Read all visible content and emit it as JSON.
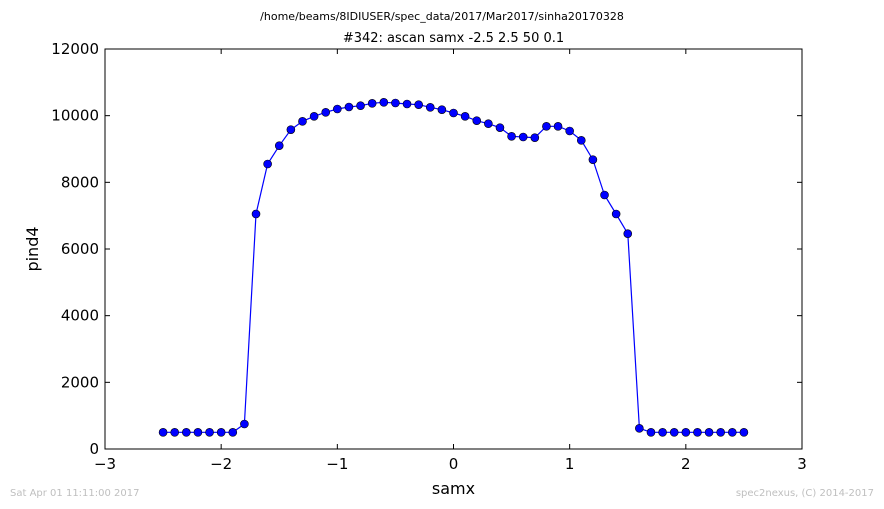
{
  "suptitle": "/home/beams/8IDIUSER/spec_data/2017/Mar2017/sinha20170328",
  "footer": {
    "timestamp": "Sat Apr 01 11:11:00 2017",
    "credit": "spec2nexus, (C) 2014-2017"
  },
  "chart_data": {
    "type": "line",
    "title": "#342: ascan  samx -2.5 2.5  50 0.1",
    "xlabel": "samx",
    "ylabel": "pind4",
    "xlim": [
      -3,
      3
    ],
    "ylim": [
      0,
      12000
    ],
    "xticks": [
      -3,
      -2,
      -1,
      0,
      1,
      2,
      3
    ],
    "yticks": [
      0,
      2000,
      4000,
      6000,
      8000,
      10000,
      12000
    ],
    "xtick_labels": [
      "−3",
      "−2",
      "−1",
      "0",
      "1",
      "2",
      "3"
    ],
    "ytick_labels": [
      "0",
      "2000",
      "4000",
      "6000",
      "8000",
      "10000",
      "12000"
    ],
    "grid": false,
    "legend": "none",
    "series": [
      {
        "color": "#0000ff",
        "marker": "circle",
        "x": [
          -2.5,
          -2.4,
          -2.3,
          -2.2,
          -2.1,
          -2.0,
          -1.9,
          -1.8,
          -1.7,
          -1.6,
          -1.5,
          -1.4,
          -1.3,
          -1.2,
          -1.1,
          -1.0,
          -0.9,
          -0.8,
          -0.7,
          -0.6,
          -0.5,
          -0.4,
          -0.3,
          -0.2,
          -0.1,
          0.0,
          0.1,
          0.2,
          0.3,
          0.4,
          0.5,
          0.6,
          0.7,
          0.8,
          0.9,
          1.0,
          1.1,
          1.2,
          1.3,
          1.4,
          1.5,
          1.6,
          1.7,
          1.8,
          1.9,
          2.0,
          2.1,
          2.2,
          2.3,
          2.4,
          2.5
        ],
        "y": [
          500,
          500,
          500,
          500,
          500,
          500,
          500,
          750,
          7050,
          8550,
          9100,
          9580,
          9830,
          9980,
          10100,
          10200,
          10260,
          10300,
          10370,
          10400,
          10380,
          10350,
          10330,
          10250,
          10180,
          10080,
          9980,
          9850,
          9760,
          9640,
          9380,
          9360,
          9340,
          9680,
          9680,
          9540,
          9260,
          8680,
          7620,
          7050,
          6460,
          620,
          500,
          500,
          500,
          500,
          500,
          500,
          500,
          500,
          500
        ]
      }
    ]
  }
}
